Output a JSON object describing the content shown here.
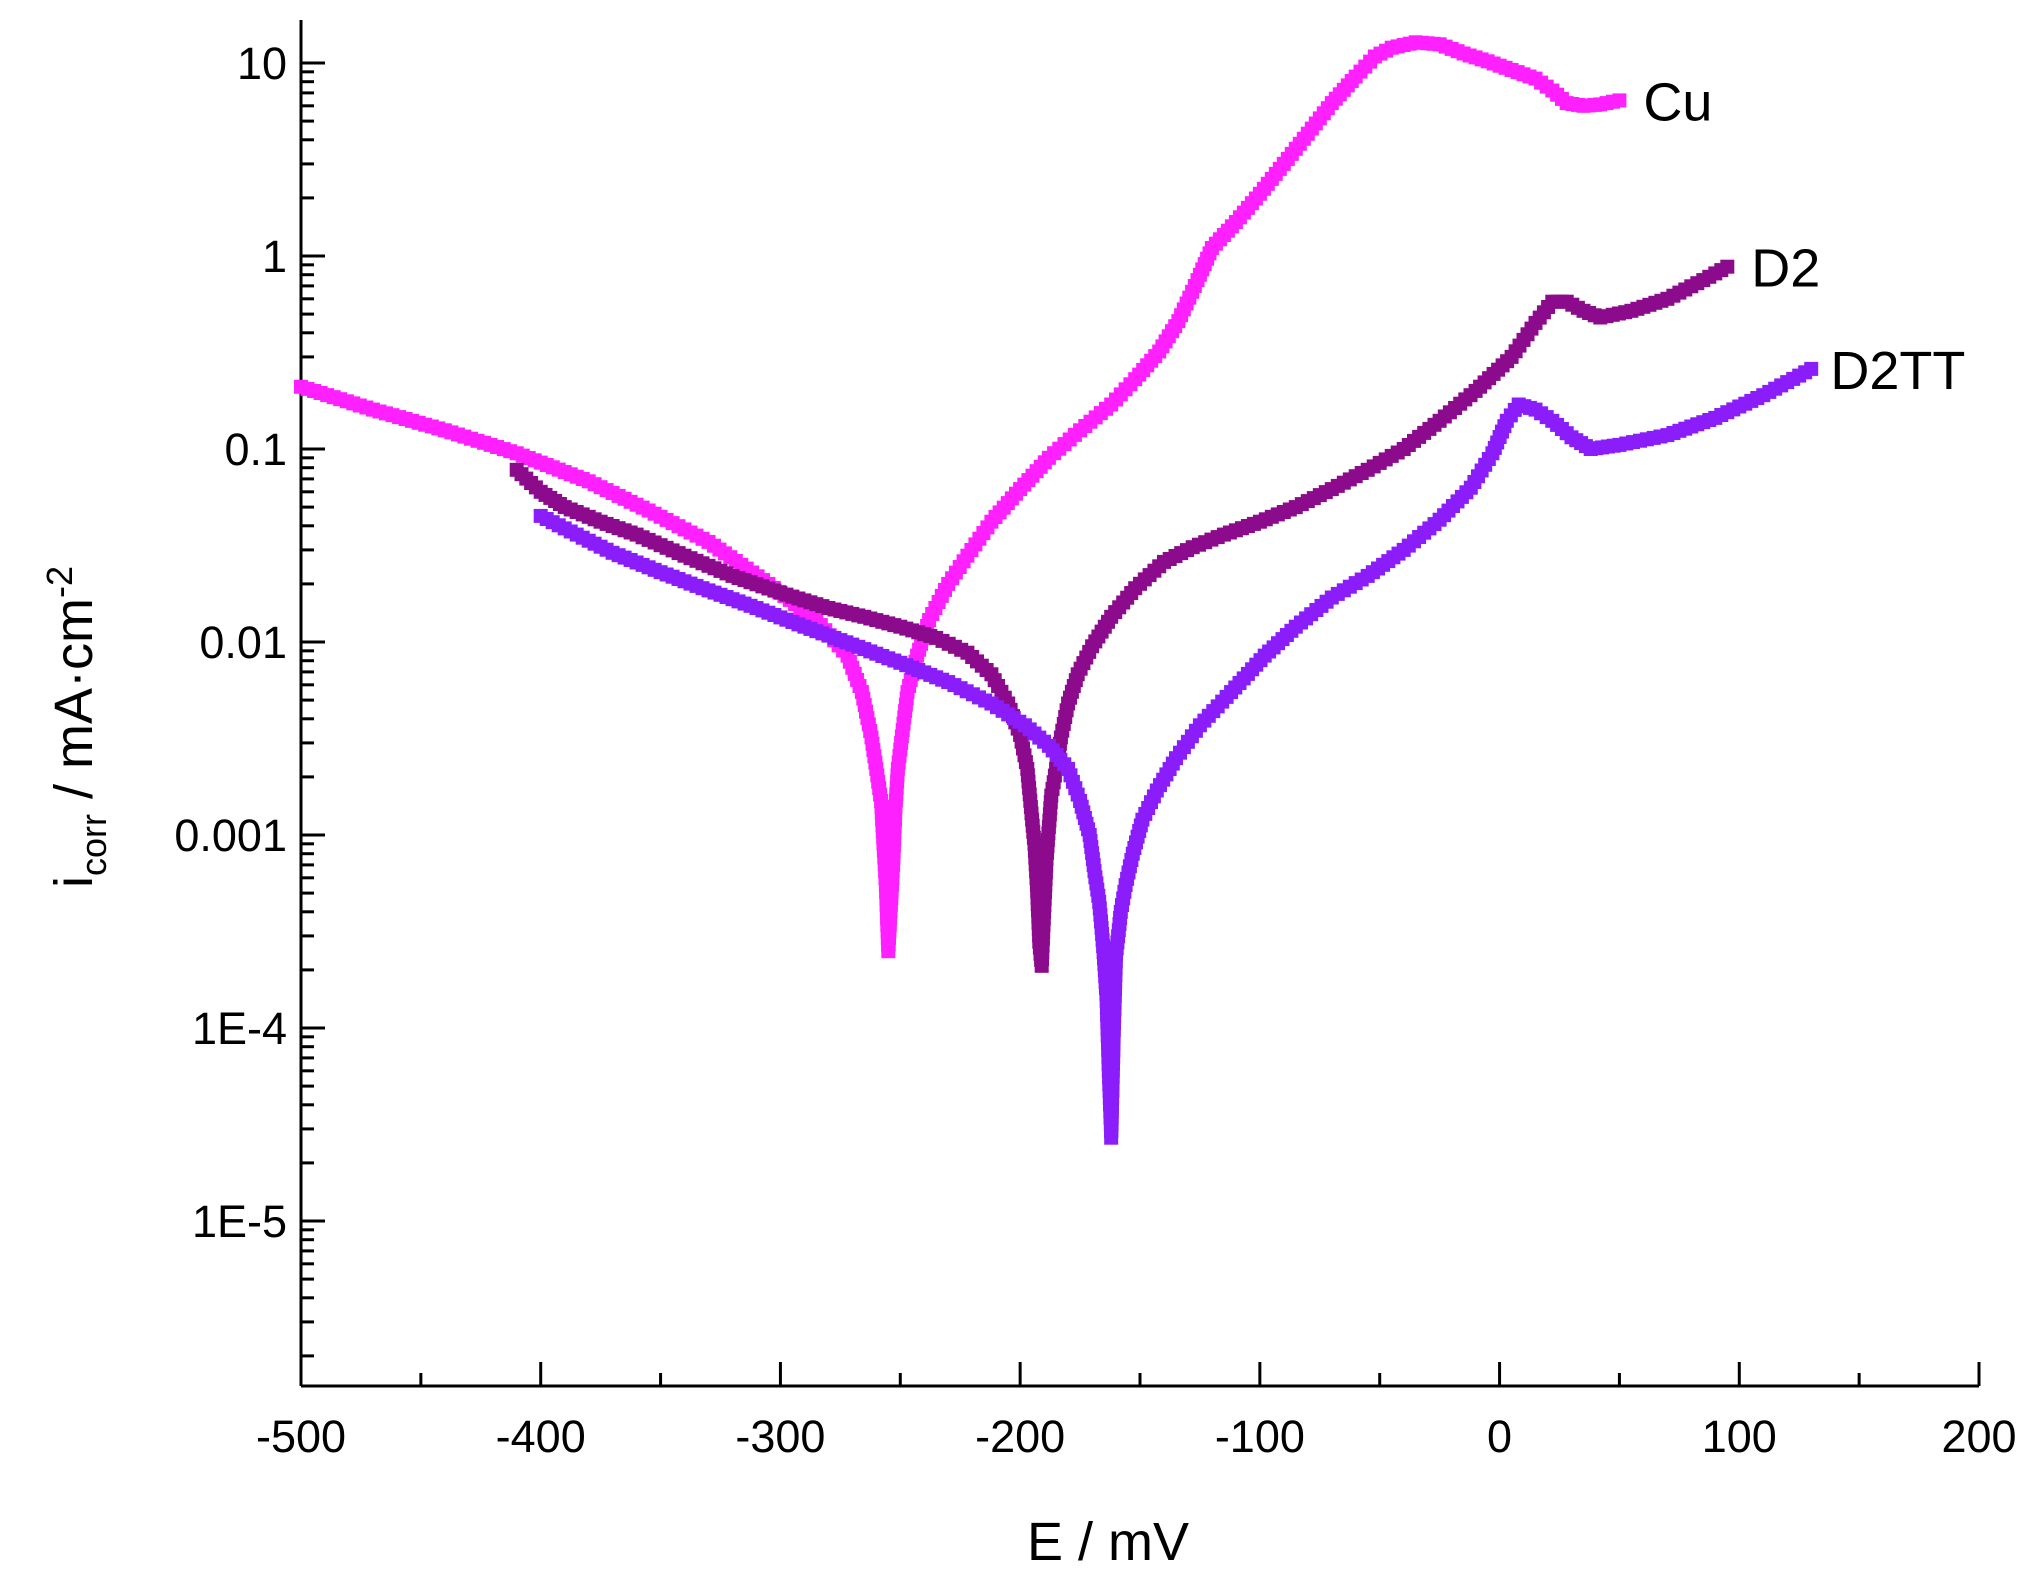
{
  "chart_data": {
    "type": "scatter",
    "xlabel": "E / mV",
    "ylabel": {
      "main": "i",
      "sub": "corr",
      "rest": " / mA·cm",
      "sup": "-2"
    },
    "xlim": [
      -500,
      200
    ],
    "ylim_log10": [
      -6,
      1.2
    ],
    "yscale": "log",
    "x_ticks": [
      -500,
      -400,
      -300,
      -200,
      -100,
      0,
      100,
      200
    ],
    "x_tick_labels": [
      "-500",
      "-400",
      "-300",
      "-200",
      "-100",
      "0",
      "100",
      "200"
    ],
    "y_ticks": [
      10,
      1,
      0.1,
      0.01,
      0.001,
      0.0001,
      1e-05
    ],
    "y_tick_labels": [
      "10",
      "1",
      "0.1",
      "0.01",
      "0.001",
      "1E-4",
      "1E-5"
    ],
    "grid": false,
    "series": [
      {
        "name": "Cu",
        "color": "#ff20ff",
        "points": [
          [
            -500,
            0.21
          ],
          [
            -470,
            0.16
          ],
          [
            -440,
            0.125
          ],
          [
            -410,
            0.095
          ],
          [
            -380,
            0.068
          ],
          [
            -355,
            0.048
          ],
          [
            -330,
            0.033
          ],
          [
            -305,
            0.02
          ],
          [
            -285,
            0.013
          ],
          [
            -272,
            0.0085
          ],
          [
            -266,
            0.0055
          ],
          [
            -262,
            0.0032
          ],
          [
            -260,
            0.0022
          ],
          [
            -258,
            0.0015
          ],
          [
            -257,
            0.0009
          ],
          [
            -256,
            0.00055
          ],
          [
            -255,
            0.00025
          ],
          [
            -253,
            0.0007
          ],
          [
            -252,
            0.0014
          ],
          [
            -251,
            0.0022
          ],
          [
            -249,
            0.0035
          ],
          [
            -247,
            0.0055
          ],
          [
            -243,
            0.0085
          ],
          [
            -238,
            0.013
          ],
          [
            -230,
            0.02
          ],
          [
            -222,
            0.028
          ],
          [
            -212,
            0.042
          ],
          [
            -200,
            0.062
          ],
          [
            -188,
            0.09
          ],
          [
            -175,
            0.125
          ],
          [
            -162,
            0.17
          ],
          [
            -152,
            0.23
          ],
          [
            -142,
            0.32
          ],
          [
            -134,
            0.46
          ],
          [
            -126,
            0.75
          ],
          [
            -120,
            1.1
          ],
          [
            -110,
            1.5
          ],
          [
            -100,
            2.1
          ],
          [
            -90,
            3.0
          ],
          [
            -80,
            4.3
          ],
          [
            -70,
            6.2
          ],
          [
            -60,
            8.5
          ],
          [
            -52,
            10.8
          ],
          [
            -45,
            12.0
          ],
          [
            -35,
            12.8
          ],
          [
            -25,
            12.5
          ],
          [
            -15,
            11.2
          ],
          [
            -5,
            10.2
          ],
          [
            5,
            9.2
          ],
          [
            15,
            8.3
          ],
          [
            22,
            7.2
          ],
          [
            28,
            6.2
          ],
          [
            35,
            6.0
          ],
          [
            42,
            6.1
          ],
          [
            50,
            6.4
          ]
        ]
      },
      {
        "name": "D2",
        "color": "#8c0a8c",
        "points": [
          [
            -410,
            0.078
          ],
          [
            -400,
            0.06
          ],
          [
            -390,
            0.05
          ],
          [
            -375,
            0.042
          ],
          [
            -360,
            0.036
          ],
          [
            -340,
            0.028
          ],
          [
            -320,
            0.022
          ],
          [
            -300,
            0.018
          ],
          [
            -280,
            0.015
          ],
          [
            -265,
            0.0135
          ],
          [
            -250,
            0.012
          ],
          [
            -235,
            0.0105
          ],
          [
            -222,
            0.0088
          ],
          [
            -212,
            0.0068
          ],
          [
            -205,
            0.0048
          ],
          [
            -200,
            0.0033
          ],
          [
            -197,
            0.0022
          ],
          [
            -195,
            0.0012
          ],
          [
            -194,
            0.0009
          ],
          [
            -193,
            0.00055
          ],
          [
            -192,
            0.00028
          ],
          [
            -191,
            0.00021
          ],
          [
            -190,
            0.0004
          ],
          [
            -189,
            0.00075
          ],
          [
            -188,
            0.0011
          ],
          [
            -187,
            0.0016
          ],
          [
            -185,
            0.0022
          ],
          [
            -183,
            0.0032
          ],
          [
            -180,
            0.0048
          ],
          [
            -176,
            0.0068
          ],
          [
            -170,
            0.0095
          ],
          [
            -162,
            0.0135
          ],
          [
            -152,
            0.019
          ],
          [
            -140,
            0.026
          ],
          [
            -128,
            0.031
          ],
          [
            -115,
            0.036
          ],
          [
            -100,
            0.042
          ],
          [
            -85,
            0.05
          ],
          [
            -70,
            0.062
          ],
          [
            -55,
            0.078
          ],
          [
            -40,
            0.1
          ],
          [
            -25,
            0.14
          ],
          [
            -10,
            0.2
          ],
          [
            5,
            0.3
          ],
          [
            15,
            0.45
          ],
          [
            22,
            0.58
          ],
          [
            28,
            0.58
          ],
          [
            35,
            0.52
          ],
          [
            42,
            0.48
          ],
          [
            55,
            0.52
          ],
          [
            70,
            0.6
          ],
          [
            85,
            0.75
          ],
          [
            95,
            0.88
          ]
        ]
      },
      {
        "name": "D2TT",
        "color": "#8a1dfa",
        "points": [
          [
            -400,
            0.045
          ],
          [
            -385,
            0.036
          ],
          [
            -370,
            0.029
          ],
          [
            -350,
            0.023
          ],
          [
            -330,
            0.0185
          ],
          [
            -310,
            0.015
          ],
          [
            -290,
            0.012
          ],
          [
            -270,
            0.0097
          ],
          [
            -250,
            0.0078
          ],
          [
            -230,
            0.0062
          ],
          [
            -212,
            0.0048
          ],
          [
            -198,
            0.0037
          ],
          [
            -188,
            0.0029
          ],
          [
            -180,
            0.0022
          ],
          [
            -175,
            0.0015
          ],
          [
            -171,
            0.001
          ],
          [
            -169,
            0.00065
          ],
          [
            -167,
            0.00045
          ],
          [
            -166,
            0.00033
          ],
          [
            -165,
            0.00023
          ],
          [
            -164,
            0.00015
          ],
          [
            -163,
            6e-05
          ],
          [
            -162,
            2.7e-05
          ],
          [
            -161,
            9e-05
          ],
          [
            -160,
            0.00024
          ],
          [
            -158,
            0.0004
          ],
          [
            -156,
            0.00055
          ],
          [
            -153,
            0.0008
          ],
          [
            -149,
            0.0012
          ],
          [
            -143,
            0.0017
          ],
          [
            -135,
            0.0025
          ],
          [
            -125,
            0.0037
          ],
          [
            -112,
            0.0055
          ],
          [
            -98,
            0.0085
          ],
          [
            -85,
            0.012
          ],
          [
            -70,
            0.017
          ],
          [
            -55,
            0.022
          ],
          [
            -40,
            0.03
          ],
          [
            -25,
            0.043
          ],
          [
            -12,
            0.063
          ],
          [
            -3,
            0.095
          ],
          [
            3,
            0.14
          ],
          [
            8,
            0.17
          ],
          [
            15,
            0.16
          ],
          [
            22,
            0.14
          ],
          [
            30,
            0.115
          ],
          [
            38,
            0.1
          ],
          [
            50,
            0.105
          ],
          [
            70,
            0.118
          ],
          [
            90,
            0.145
          ],
          [
            110,
            0.19
          ],
          [
            125,
            0.24
          ],
          [
            130,
            0.26
          ]
        ]
      }
    ],
    "annotations": [
      {
        "text": "Cu",
        "x": 60,
        "y": 6.4
      },
      {
        "text": "D2",
        "x": 105,
        "y": 0.88
      },
      {
        "text": "D2TT",
        "x": 138,
        "y": 0.26
      }
    ]
  }
}
